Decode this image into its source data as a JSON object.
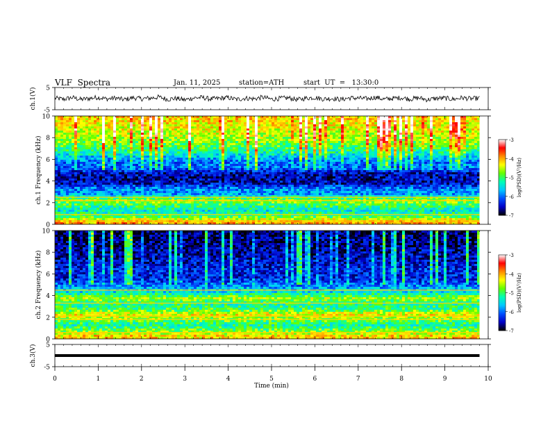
{
  "header": {
    "title": "VLF  Spectra",
    "date": "Jan. 11, 2025",
    "station": "station=ATH",
    "start": "start  UT  =   13:30:0"
  },
  "chart_data": [
    {
      "type": "line",
      "title": "",
      "ylabel": "ch.1(V)",
      "ylim": [
        -5,
        5
      ],
      "yticks": [
        "5",
        "-5"
      ],
      "x": [
        0.0,
        0.2,
        0.4,
        0.6,
        0.8,
        1.0,
        1.2,
        1.4,
        1.6,
        1.8,
        2.0,
        2.2,
        2.4,
        2.6,
        2.8,
        3.0,
        3.2,
        3.4,
        3.6,
        3.8,
        4.0,
        4.2,
        4.4,
        4.6,
        4.8,
        5.0,
        5.2,
        5.4,
        5.6,
        5.8,
        6.0,
        6.2,
        6.4,
        6.6,
        6.8,
        7.0,
        7.2,
        7.4,
        7.6,
        7.8,
        8.0,
        8.2,
        8.4,
        8.6,
        8.8,
        9.0,
        9.2,
        9.4,
        9.6,
        9.8
      ],
      "series": [
        {
          "values": [
            0.2,
            -0.3,
            0.5,
            -0.4,
            0.1,
            0.6,
            -0.2,
            0.3,
            -0.5,
            0.4,
            -0.1,
            0.2,
            0.7,
            -0.3,
            0.1,
            -0.6,
            0.3,
            0.5,
            -0.2,
            0.1,
            0.4,
            -0.4,
            0.2,
            -0.1,
            0.6,
            -0.3,
            0.1,
            0.3,
            -0.5,
            0.2,
            0.5,
            -0.2,
            0.1,
            -0.4,
            0.3,
            0.2,
            -0.1,
            0.6,
            -0.3,
            0.1,
            0.4,
            -0.2,
            0.3,
            -0.5,
            0.1,
            0.2,
            -0.3,
            0.4,
            -0.1,
            0.2
          ]
        }
      ]
    },
    {
      "type": "heatmap",
      "title": "",
      "ylabel": "ch.1 Frequency (kHz)",
      "ylim": [
        0,
        10
      ],
      "yticks": [
        "0",
        "2",
        "4",
        "6",
        "8",
        "10"
      ],
      "colorbar_label": "log(PSD)(V²/Hz)",
      "colorbar_range": [
        -7,
        -3
      ],
      "colorbar_ticks": [
        "-3",
        "-4",
        "-5",
        "-6",
        "-7"
      ],
      "frequency_profile_khz": [
        0.25,
        0.75,
        1.25,
        1.75,
        2.25,
        2.75,
        3.25,
        3.75,
        4.25,
        4.75,
        5.25,
        5.75,
        6.25,
        6.75,
        7.25,
        7.75,
        8.25,
        8.75,
        9.25,
        9.75
      ],
      "mean_log_psd": [
        -4.0,
        -5.0,
        -5.4,
        -5.0,
        -4.6,
        -5.8,
        -5.9,
        -6.5,
        -6.6,
        -6.5,
        -6.0,
        -6.0,
        -5.6,
        -5.2,
        -4.9,
        -4.7,
        -4.5,
        -4.4,
        -4.3,
        -4.2
      ],
      "strong_lines_khz": [
        0.3,
        0.9,
        2.2,
        2.5
      ]
    },
    {
      "type": "heatmap",
      "title": "",
      "ylabel": "ch.2 Frequency (kHz)",
      "ylim": [
        0,
        10
      ],
      "yticks": [
        "0",
        "2",
        "4",
        "6",
        "8",
        "10"
      ],
      "colorbar_label": "log(PSD)(V²/Hz)",
      "colorbar_range": [
        -7,
        -3
      ],
      "colorbar_ticks": [
        "-3",
        "-4",
        "-5",
        "-6",
        "-7"
      ],
      "frequency_profile_khz": [
        0.25,
        0.75,
        1.25,
        1.75,
        2.25,
        2.75,
        3.25,
        3.75,
        4.25,
        4.75,
        5.25,
        5.75,
        6.25,
        6.75,
        7.25,
        7.75,
        8.25,
        8.75,
        9.25,
        9.75
      ],
      "mean_log_psd": [
        -4.2,
        -4.8,
        -5.2,
        -4.8,
        -4.3,
        -5.0,
        -5.2,
        -4.6,
        -5.4,
        -5.8,
        -6.2,
        -6.4,
        -6.3,
        -6.4,
        -6.5,
        -6.6,
        -6.6,
        -6.7,
        -6.7,
        -6.8
      ],
      "strong_lines_khz": [
        0.6,
        1.8,
        2.1,
        3.3,
        4.5
      ]
    },
    {
      "type": "line",
      "title": "",
      "ylabel": "ch.3(V)",
      "ylim": [
        -5,
        5
      ],
      "yticks": [
        "5",
        "-5"
      ],
      "x": [
        0,
        9.8
      ],
      "series": [
        {
          "values": [
            0,
            0
          ]
        }
      ]
    }
  ],
  "xaxis": {
    "label": "Time  (min)",
    "xlim": [
      0,
      10
    ],
    "ticks": [
      "0",
      "1",
      "2",
      "3",
      "4",
      "5",
      "6",
      "7",
      "8",
      "9",
      "10"
    ]
  },
  "colors": {
    "trace": "#000000",
    "colormap": [
      "#000000",
      "#0000c8",
      "#0050ff",
      "#00c8ff",
      "#00ffb4",
      "#64ff00",
      "#ffff00",
      "#ff8c00",
      "#ff0000",
      "#ffffff"
    ]
  }
}
